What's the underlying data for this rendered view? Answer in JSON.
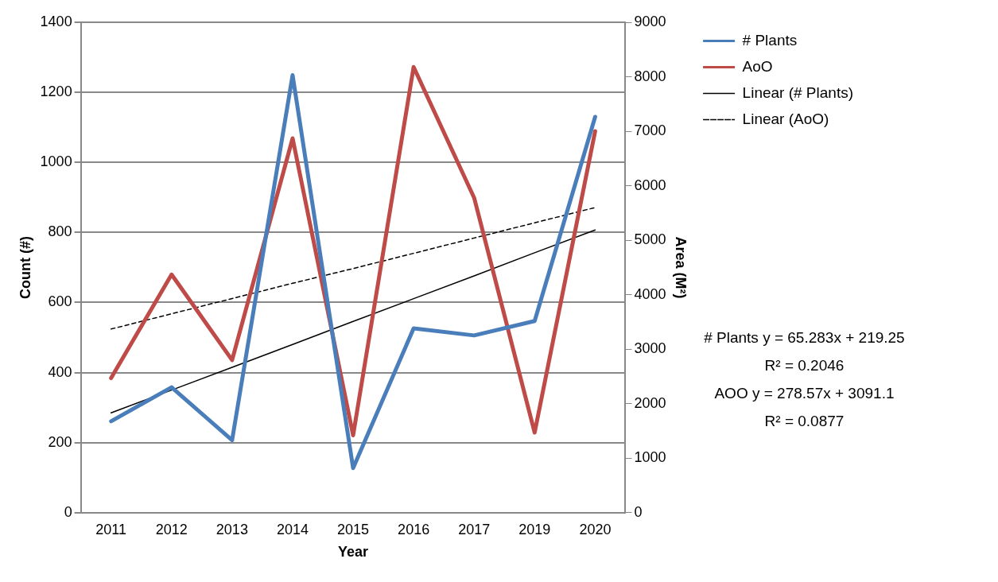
{
  "chart_data": {
    "type": "line",
    "xlabel": "Year",
    "ylabel": "Count (#)",
    "y2label": "Area (M²)",
    "categories": [
      "2011",
      "2012",
      "2013",
      "2014",
      "2015",
      "2016",
      "2017",
      "2019",
      "2020"
    ],
    "series": [
      {
        "name": "# Plants",
        "color": "#4a7ebb",
        "values": [
          261,
          358,
          207,
          1249,
          127,
          526,
          506,
          547,
          1130
        ]
      },
      {
        "name": "AoO",
        "color": "#be4b48",
        "axis": "y2",
        "values": [
          2470,
          4370,
          2800,
          6870,
          1420,
          8180,
          5780,
          1470,
          7000
        ]
      },
      {
        "name": "Linear (# Plants)",
        "color": "#000000",
        "line_style": "solid",
        "values": [
          285,
          350,
          415,
          480,
          546,
          611,
          676,
          742,
          807
        ]
      },
      {
        "name": "Linear (AoO)",
        "color": "#000000",
        "line_style": "dashed",
        "axis": "y2",
        "values": [
          3370,
          3650,
          3930,
          4210,
          4480,
          4760,
          5040,
          5320,
          5600
        ]
      }
    ],
    "ylim": [
      0,
      1400
    ],
    "yticks": [
      0,
      200,
      400,
      600,
      800,
      1000,
      1200,
      1400
    ],
    "y2lim": [
      0,
      9000
    ],
    "y2ticks": [
      0,
      1000,
      2000,
      3000,
      4000,
      5000,
      6000,
      7000,
      8000,
      9000
    ],
    "grid": "y",
    "legend": "right",
    "marker": "none",
    "annotations": [
      "# Plants y = 65.283x + 219.25",
      "R² = 0.2046",
      "AOO y = 278.57x + 3091.1",
      "R² = 0.0877"
    ]
  }
}
